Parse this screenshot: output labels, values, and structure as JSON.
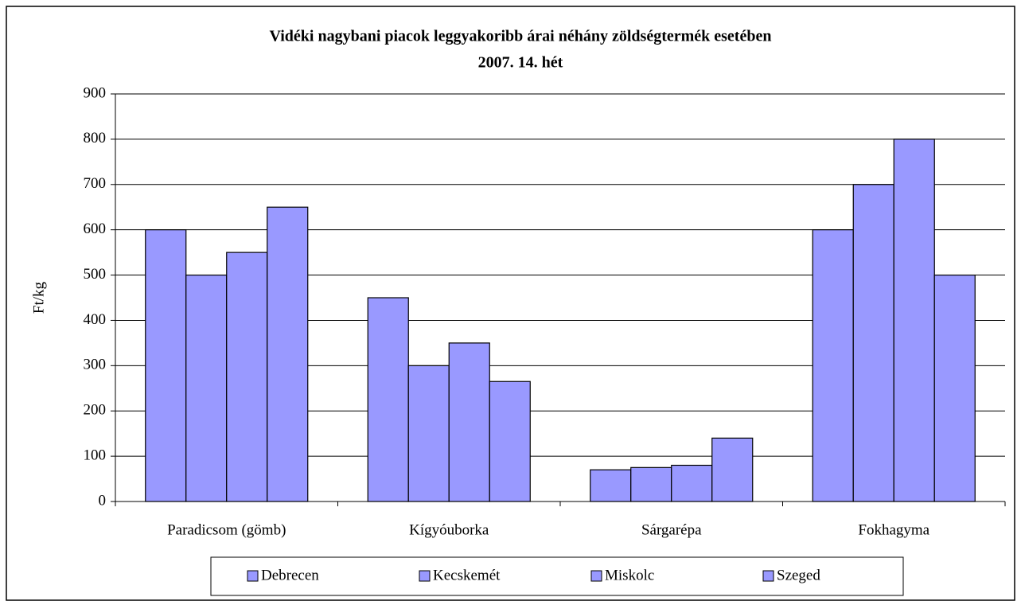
{
  "chart_data": {
    "type": "bar",
    "title": "Vidéki nagybani piacok leggyakoribb árai néhány zöldségtermék esetében",
    "subtitle": "2007. 14. hét",
    "y_label": "Ft/kg",
    "categories": [
      "Paradicsom (gömb)",
      "Kígyóuborka",
      "Sárgarépa",
      "Fokhagyma"
    ],
    "series": [
      {
        "name": "Debrecen",
        "color": "#9999ff",
        "values": [
          600,
          450,
          70,
          600
        ]
      },
      {
        "name": "Kecskemét",
        "color": "#9999ff",
        "values": [
          500,
          300,
          75,
          700
        ]
      },
      {
        "name": "Miskolc",
        "color": "#9999ff",
        "values": [
          550,
          350,
          80,
          800
        ]
      },
      {
        "name": "Szeged",
        "color": "#9999ff",
        "values": [
          650,
          265,
          140,
          500
        ]
      }
    ],
    "ylim": [
      0,
      900
    ],
    "yticks": [
      0,
      100,
      200,
      300,
      400,
      500,
      600,
      700,
      800,
      900
    ],
    "grid": true,
    "legend": "bottom"
  }
}
